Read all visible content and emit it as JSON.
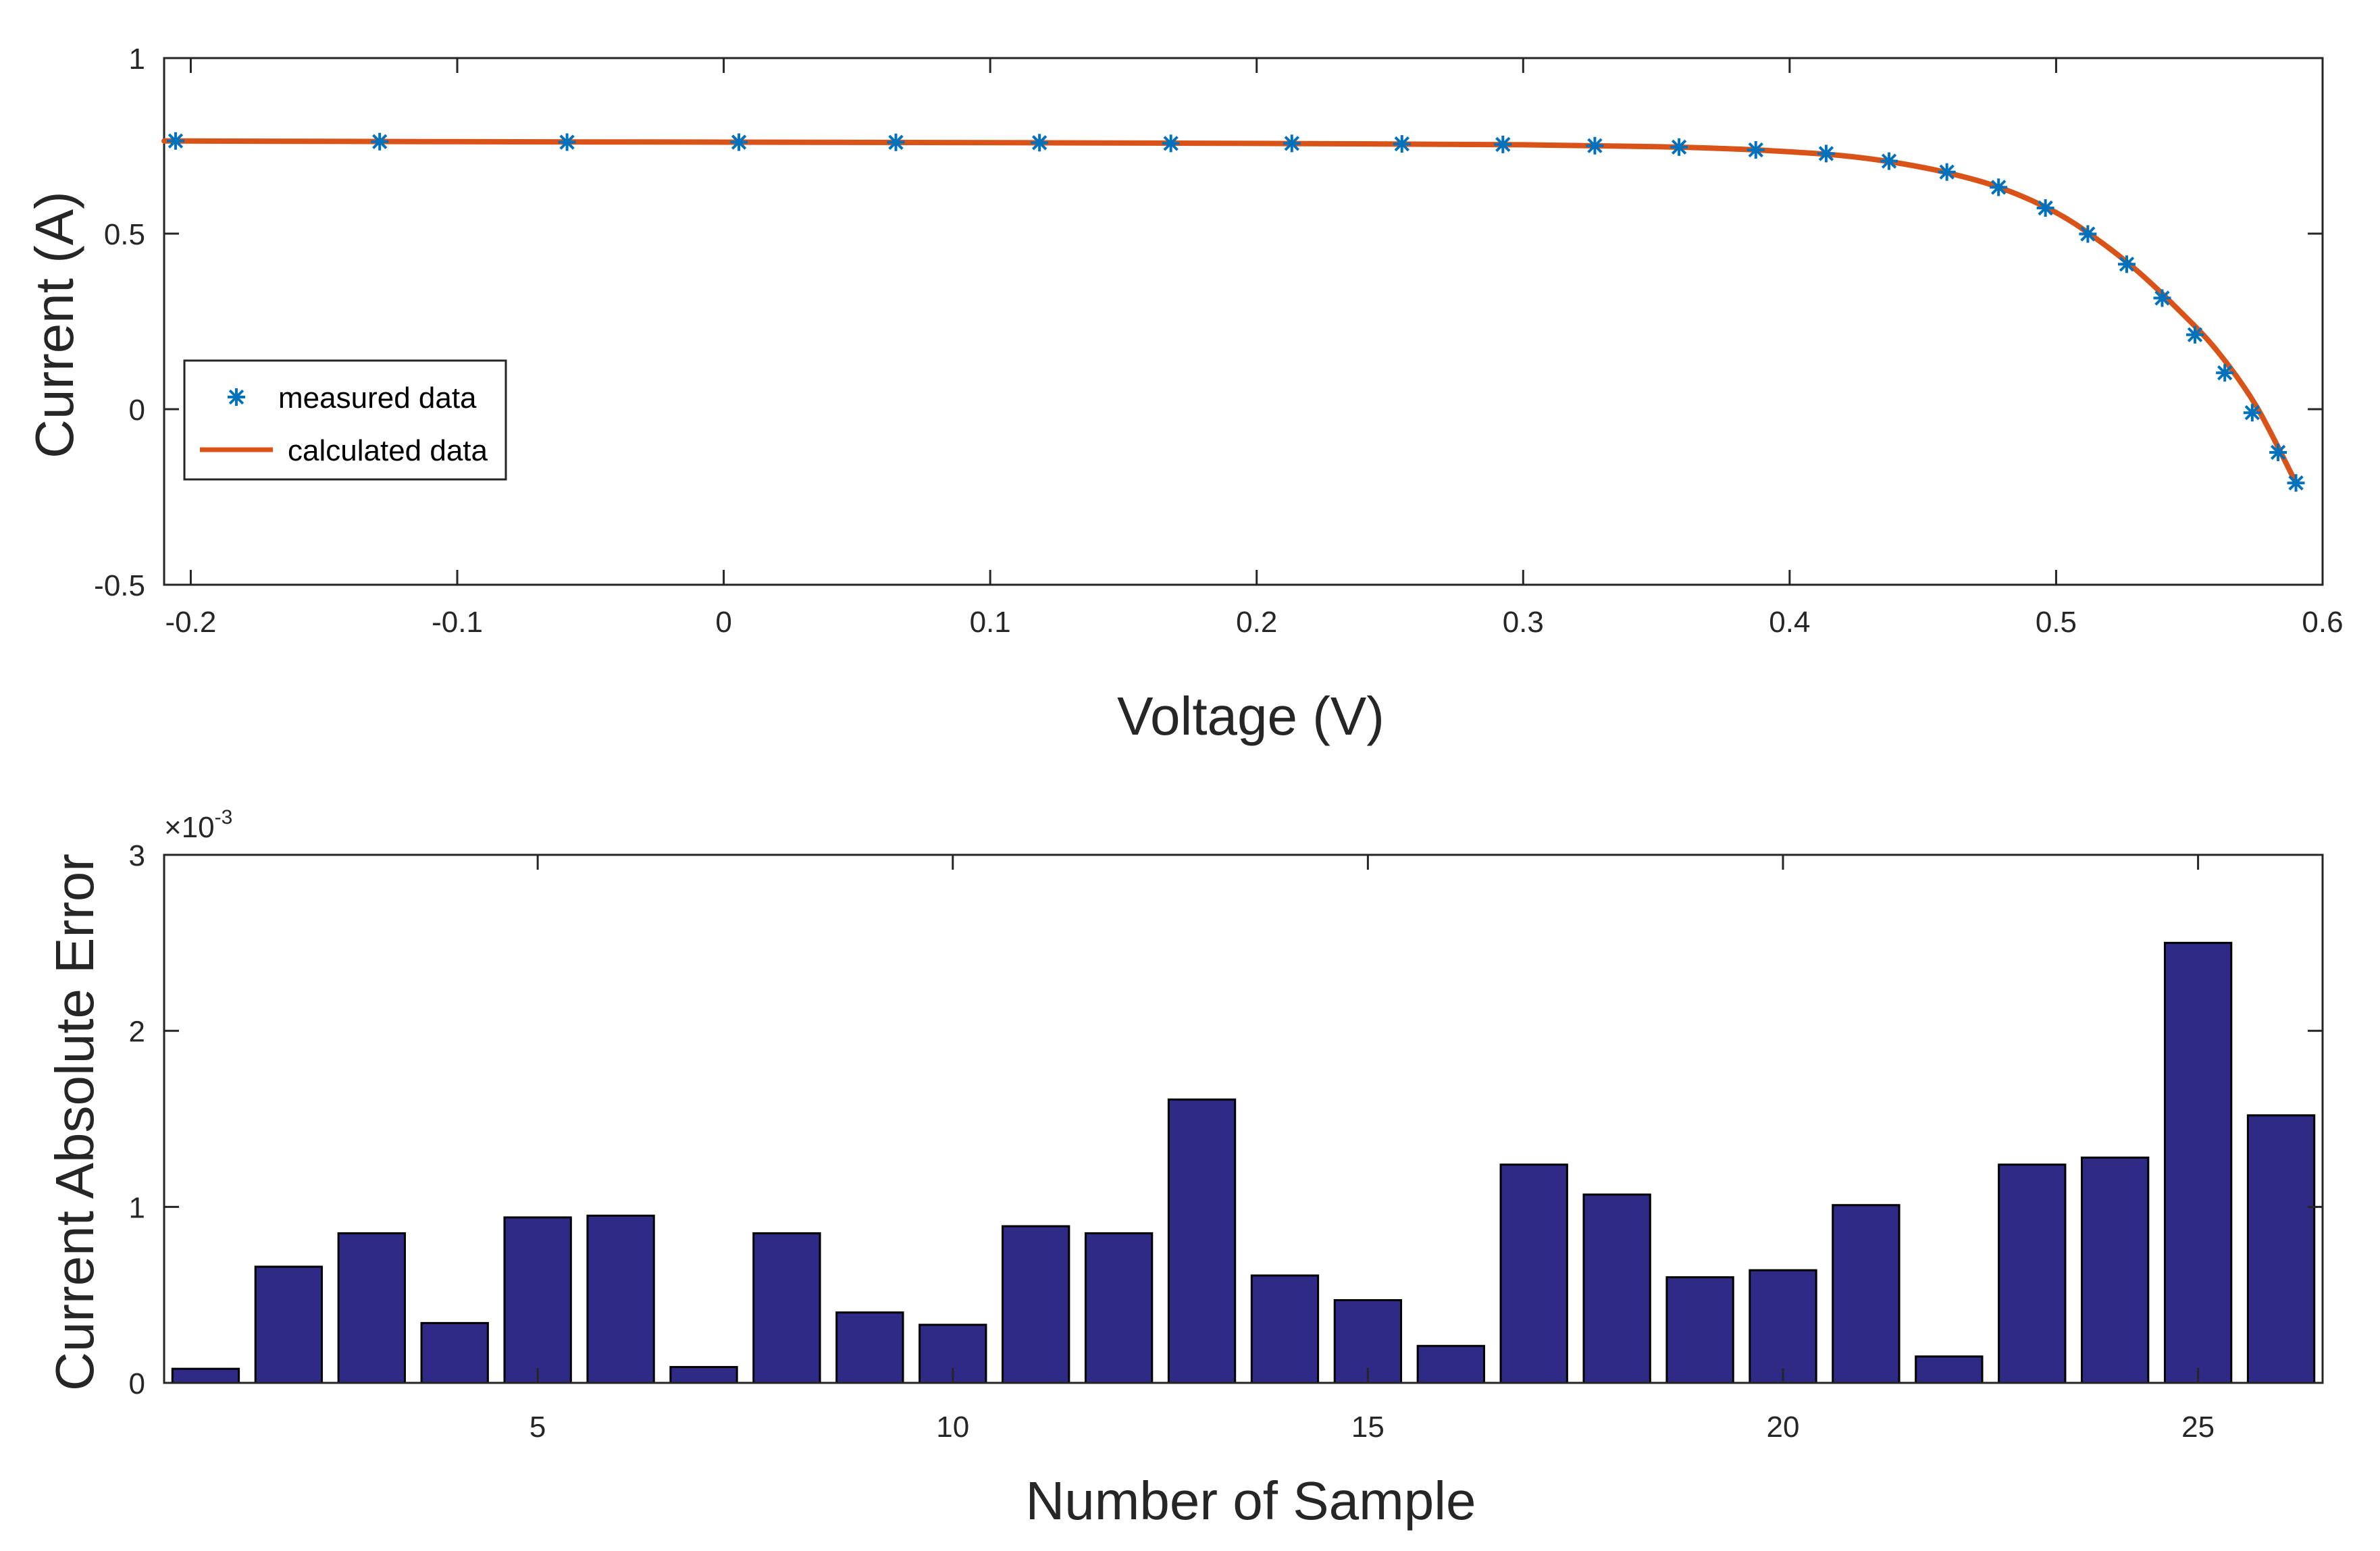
{
  "colors": {
    "line": "#D95319",
    "marker": "#0072BD",
    "bar_fill": "#2E2A85",
    "bar_edge": "#000000",
    "axis": "#262626"
  },
  "chart_data": [
    {
      "type": "line",
      "title": "",
      "xlabel": "Voltage (V)",
      "ylabel": "Current  (A)",
      "xlim": [
        -0.21,
        0.6
      ],
      "ylim": [
        -0.5,
        1
      ],
      "xticks": [
        -0.2,
        -0.1,
        0,
        0.1,
        0.2,
        0.3,
        0.4,
        0.5,
        0.6
      ],
      "xtick_labels": [
        "-0.2",
        "-0.1",
        "0",
        "0.1",
        "0.2",
        "0.3",
        "0.4",
        "0.5",
        "0.6"
      ],
      "yticks": [
        -0.5,
        0,
        0.5,
        1
      ],
      "ytick_labels": [
        "-0.5",
        "0",
        "0.5",
        "1"
      ],
      "legend": [
        "measured data",
        "calculated data"
      ],
      "legend_location": "middle-left",
      "series": [
        {
          "name": "measured data",
          "style": "markers",
          "marker": "*",
          "x": [
            -0.2057,
            -0.1291,
            -0.0588,
            0.0057,
            0.0646,
            0.1185,
            0.1678,
            0.2132,
            0.2545,
            0.2924,
            0.3269,
            0.3585,
            0.3873,
            0.4137,
            0.4373,
            0.459,
            0.4784,
            0.496,
            0.5119,
            0.5265,
            0.5398,
            0.5521,
            0.5633,
            0.5736,
            0.5833,
            0.59
          ],
          "y": [
            0.764,
            0.762,
            0.7605,
            0.7605,
            0.76,
            0.759,
            0.757,
            0.757,
            0.7555,
            0.754,
            0.7505,
            0.7465,
            0.7385,
            0.728,
            0.7065,
            0.6755,
            0.632,
            0.573,
            0.499,
            0.413,
            0.3165,
            0.212,
            0.1035,
            -0.01,
            -0.123,
            -0.21
          ]
        },
        {
          "name": "calculated data",
          "style": "line",
          "x": [
            -0.21,
            -0.1,
            0.0,
            0.1,
            0.2,
            0.3,
            0.35,
            0.38,
            0.4,
            0.42,
            0.44,
            0.46,
            0.48,
            0.5,
            0.515,
            0.53,
            0.545,
            0.56,
            0.575,
            0.59
          ],
          "y": [
            0.764,
            0.762,
            0.7605,
            0.759,
            0.757,
            0.753,
            0.7475,
            0.741,
            0.733,
            0.722,
            0.702,
            0.672,
            0.628,
            0.56,
            0.486,
            0.397,
            0.29,
            0.17,
            0.01,
            -0.21
          ]
        }
      ]
    },
    {
      "type": "bar",
      "title": "",
      "xlabel": "Number of Sample",
      "ylabel": "Current Absolute Error",
      "exponent_base": "×10",
      "exponent_power": "-3",
      "xlim": [
        0.5,
        26.5
      ],
      "ylim": [
        0,
        3
      ],
      "xticks": [
        5,
        10,
        15,
        20,
        25
      ],
      "xtick_labels": [
        "5",
        "10",
        "15",
        "20",
        "25"
      ],
      "yticks": [
        0,
        1,
        2,
        3
      ],
      "ytick_labels": [
        "0",
        "1",
        "2",
        "3"
      ],
      "categories": [
        1,
        2,
        3,
        4,
        5,
        6,
        7,
        8,
        9,
        10,
        11,
        12,
        13,
        14,
        15,
        16,
        17,
        18,
        19,
        20,
        21,
        22,
        23,
        24,
        25,
        26
      ],
      "values": [
        0.08,
        0.66,
        0.85,
        0.34,
        0.94,
        0.95,
        0.09,
        0.85,
        0.4,
        0.33,
        0.89,
        0.85,
        1.61,
        0.61,
        0.47,
        0.21,
        1.24,
        1.07,
        0.6,
        0.64,
        1.01,
        0.15,
        1.24,
        1.28,
        2.5,
        1.52
      ]
    }
  ]
}
